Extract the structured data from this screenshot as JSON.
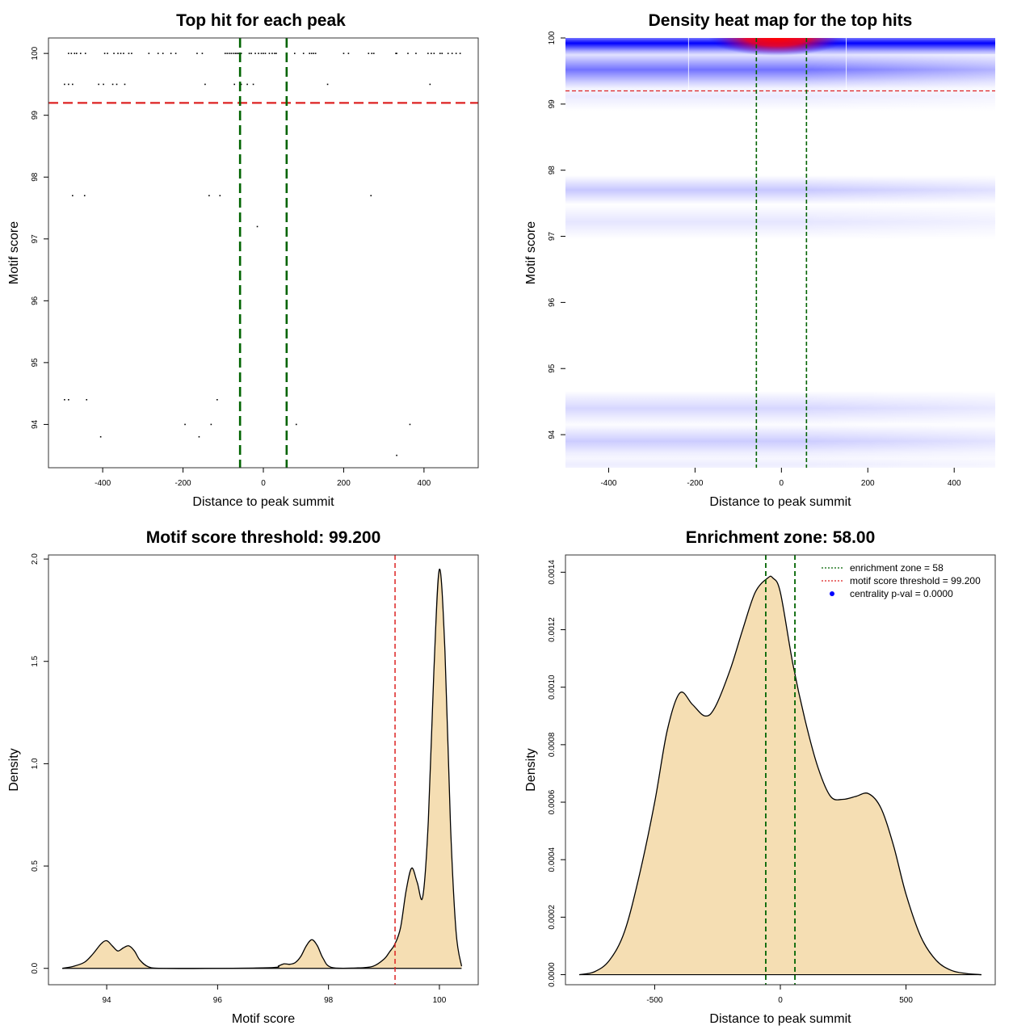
{
  "chart_data": [
    {
      "type": "scatter",
      "title": "Top hit for each peak",
      "xlabel": "Distance to peak summit",
      "ylabel": "Motif score",
      "xlim": [
        -535,
        535
      ],
      "ylim": [
        93.3,
        100.25
      ],
      "x_ticks": [
        -400,
        -200,
        0,
        200,
        400
      ],
      "x_tick_labels": [
        "-400",
        "-200",
        "0",
        "200",
        "400"
      ],
      "y_ticks": [
        94,
        95,
        96,
        97,
        98,
        99,
        100
      ],
      "y_tick_labels": [
        "94",
        "95",
        "96",
        "97",
        "98",
        "99",
        "100"
      ],
      "grid": false,
      "threshold_line": {
        "y": 99.2,
        "color": "#dd2222",
        "style": "dashed"
      },
      "zone_lines": {
        "x": [
          -58,
          58
        ],
        "color": "#006400",
        "style": "dashed"
      },
      "points": [
        [
          -485,
          100
        ],
        [
          -478,
          100
        ],
        [
          -470,
          100
        ],
        [
          -465,
          100
        ],
        [
          -455,
          100
        ],
        [
          -443,
          100
        ],
        [
          -395,
          100
        ],
        [
          -388,
          100
        ],
        [
          -372,
          100
        ],
        [
          -362,
          100
        ],
        [
          -355,
          100
        ],
        [
          -348,
          100
        ],
        [
          -335,
          100
        ],
        [
          -328,
          100
        ],
        [
          -285,
          100
        ],
        [
          -262,
          100
        ],
        [
          -250,
          100
        ],
        [
          -230,
          100
        ],
        [
          -218,
          100
        ],
        [
          -165,
          100
        ],
        [
          -152,
          100
        ],
        [
          -95,
          100
        ],
        [
          -90,
          100
        ],
        [
          -85,
          100
        ],
        [
          -80,
          100
        ],
        [
          -75,
          100
        ],
        [
          -70,
          100
        ],
        [
          -66,
          100
        ],
        [
          -62,
          100
        ],
        [
          -55,
          100
        ],
        [
          -35,
          100
        ],
        [
          -30,
          100
        ],
        [
          -20,
          100
        ],
        [
          -12,
          100
        ],
        [
          -5,
          100
        ],
        [
          0,
          100
        ],
        [
          5,
          100
        ],
        [
          15,
          100
        ],
        [
          22,
          100
        ],
        [
          28,
          100
        ],
        [
          32,
          100
        ],
        [
          78,
          100
        ],
        [
          100,
          100
        ],
        [
          115,
          100
        ],
        [
          120,
          100
        ],
        [
          125,
          100
        ],
        [
          130,
          100
        ],
        [
          200,
          100
        ],
        [
          212,
          100
        ],
        [
          262,
          100
        ],
        [
          270,
          100
        ],
        [
          275,
          100
        ],
        [
          330,
          100
        ],
        [
          332,
          100
        ],
        [
          360,
          100
        ],
        [
          380,
          100
        ],
        [
          410,
          100
        ],
        [
          418,
          100
        ],
        [
          425,
          100
        ],
        [
          440,
          100
        ],
        [
          445,
          100
        ],
        [
          460,
          100
        ],
        [
          470,
          100
        ],
        [
          480,
          100
        ],
        [
          490,
          100
        ],
        [
          -495,
          99.5
        ],
        [
          -485,
          99.5
        ],
        [
          -475,
          99.5
        ],
        [
          -410,
          99.5
        ],
        [
          -398,
          99.5
        ],
        [
          -375,
          99.5
        ],
        [
          -365,
          99.5
        ],
        [
          -345,
          99.5
        ],
        [
          -145,
          99.5
        ],
        [
          -72,
          99.5
        ],
        [
          -55,
          99.5
        ],
        [
          -40,
          99.5
        ],
        [
          -25,
          99.5
        ],
        [
          160,
          99.5
        ],
        [
          415,
          99.5
        ],
        [
          -475,
          97.7
        ],
        [
          -445,
          97.7
        ],
        [
          -135,
          97.7
        ],
        [
          -108,
          97.7
        ],
        [
          268,
          97.7
        ],
        [
          -15,
          97.2
        ],
        [
          -495,
          94.4
        ],
        [
          -485,
          94.4
        ],
        [
          -440,
          94.4
        ],
        [
          -115,
          94.4
        ],
        [
          -195,
          94.0
        ],
        [
          -130,
          94.0
        ],
        [
          82,
          94.0
        ],
        [
          365,
          94.0
        ],
        [
          -405,
          93.8
        ],
        [
          -160,
          93.8
        ],
        [
          332,
          93.5
        ]
      ]
    },
    {
      "type": "heatmap",
      "title": "Density heat map for the top hits",
      "xlabel": "Distance to peak summit",
      "ylabel": "Motif score",
      "xlim": [
        -500,
        495
      ],
      "ylim": [
        93.5,
        100
      ],
      "x_ticks": [
        -400,
        -200,
        0,
        200,
        400
      ],
      "x_tick_labels": [
        "-400",
        "-200",
        "0",
        "200",
        "400"
      ],
      "y_ticks": [
        94,
        95,
        96,
        97,
        98,
        99,
        100
      ],
      "y_tick_labels": [
        "94",
        "95",
        "96",
        "97",
        "98",
        "99",
        "100"
      ],
      "threshold_line": {
        "y": 99.2,
        "color": "#dd2222",
        "style": "dashed"
      },
      "zone_lines": {
        "x": [
          -58,
          58
        ],
        "color": "#006400",
        "style": "dashed"
      },
      "bands": [
        {
          "y": 99.92,
          "sigma_y": 0.08,
          "intensity": 1.0
        },
        {
          "y": 99.52,
          "sigma_y": 0.13,
          "intensity": 0.55
        },
        {
          "y": 99.12,
          "sigma_y": 0.1,
          "intensity": 0.08
        },
        {
          "y": 97.7,
          "sigma_y": 0.1,
          "intensity": 0.22
        },
        {
          "y": 97.22,
          "sigma_y": 0.12,
          "intensity": 0.1
        },
        {
          "y": 94.4,
          "sigma_y": 0.12,
          "intensity": 0.16
        },
        {
          "y": 93.9,
          "sigma_y": 0.12,
          "intensity": 0.2
        },
        {
          "y": 93.55,
          "sigma_y": 0.08,
          "intensity": 0.07
        }
      ],
      "hot_spot": {
        "x": -10,
        "y": 100,
        "intensity": 1.0
      }
    },
    {
      "type": "area",
      "title": "Motif score threshold: 99.200",
      "xlabel": "Motif score",
      "ylabel": "Density",
      "xlim": [
        92.95,
        100.7
      ],
      "ylim": [
        -0.08,
        2.02
      ],
      "x_ticks": [
        94,
        96,
        98,
        100
      ],
      "x_tick_labels": [
        "94",
        "96",
        "98",
        "100"
      ],
      "y_ticks": [
        0.0,
        0.5,
        1.0,
        1.5,
        2.0
      ],
      "y_tick_labels": [
        "0.0",
        "0.5",
        "1.0",
        "1.5",
        "2.0"
      ],
      "fill_color": "#f5deb3",
      "threshold_line": {
        "x": 99.2,
        "color": "#dd2222",
        "style": "dashed"
      },
      "x": [
        93.2,
        93.4,
        93.6,
        93.75,
        93.9,
        94.0,
        94.1,
        94.2,
        94.3,
        94.4,
        94.5,
        94.6,
        94.75,
        95.0,
        96.0,
        97.0,
        97.1,
        97.2,
        97.3,
        97.4,
        97.5,
        97.6,
        97.7,
        97.8,
        97.9,
        98.05,
        98.5,
        98.8,
        99.0,
        99.1,
        99.2,
        99.3,
        99.4,
        99.5,
        99.6,
        99.7,
        99.8,
        99.9,
        100.0,
        100.1,
        100.2,
        100.3,
        100.4
      ],
      "y": [
        0.0,
        0.01,
        0.03,
        0.07,
        0.12,
        0.135,
        0.11,
        0.085,
        0.1,
        0.11,
        0.085,
        0.04,
        0.008,
        0.0,
        0.0,
        0.004,
        0.012,
        0.022,
        0.02,
        0.028,
        0.058,
        0.11,
        0.14,
        0.11,
        0.05,
        0.005,
        0.002,
        0.01,
        0.045,
        0.08,
        0.12,
        0.2,
        0.38,
        0.49,
        0.42,
        0.35,
        0.72,
        1.45,
        1.95,
        1.55,
        0.7,
        0.18,
        0.01
      ]
    },
    {
      "type": "area",
      "title": "Enrichment zone: 58.00",
      "xlabel": "Distance to peak summit",
      "ylabel": "Density",
      "xlim": [
        -855,
        855
      ],
      "ylim": [
        -3.5e-05,
        0.00146
      ],
      "x_ticks": [
        -500,
        0,
        500
      ],
      "x_tick_labels": [
        "-500",
        "0",
        "500"
      ],
      "y_ticks": [
        0.0,
        0.0002,
        0.0004,
        0.0006,
        0.0008,
        0.001,
        0.0012,
        0.0014
      ],
      "y_tick_labels": [
        "0.0000",
        "0.0002",
        "0.0004",
        "0.0006",
        "0.0008",
        "0.0010",
        "0.0012",
        "0.0014"
      ],
      "fill_color": "#f5deb3",
      "zone_lines": {
        "x": [
          -58,
          58
        ],
        "color": "#006400",
        "style": "dashed"
      },
      "x": [
        -800,
        -740,
        -680,
        -620,
        -560,
        -500,
        -450,
        -400,
        -350,
        -300,
        -260,
        -200,
        -150,
        -100,
        -50,
        -30,
        0,
        50,
        100,
        150,
        200,
        250,
        300,
        350,
        400,
        450,
        500,
        560,
        620,
        680,
        740,
        800
      ],
      "y": [
        0.0,
        1e-05,
        5e-05,
        0.00015,
        0.00035,
        0.0006,
        0.00085,
        0.00098,
        0.00094,
        0.0009,
        0.00093,
        0.00106,
        0.0012,
        0.00133,
        0.00138,
        0.00138,
        0.00133,
        0.00108,
        0.00088,
        0.00072,
        0.00062,
        0.00061,
        0.00062,
        0.00063,
        0.00058,
        0.00045,
        0.00028,
        0.00013,
        5e-05,
        1.5e-05,
        4e-06,
        0.0
      ],
      "legend": [
        {
          "label": "enrichment zone = 58",
          "color": "#006400",
          "marker": "dotted-line"
        },
        {
          "label": "motif score threshold = 99.200",
          "color": "#dd2222",
          "marker": "dotted-line"
        },
        {
          "label": "centrality p-val = 0.0000",
          "color": "#0000ff",
          "marker": "dot"
        }
      ],
      "legend_position": "top-right"
    }
  ]
}
